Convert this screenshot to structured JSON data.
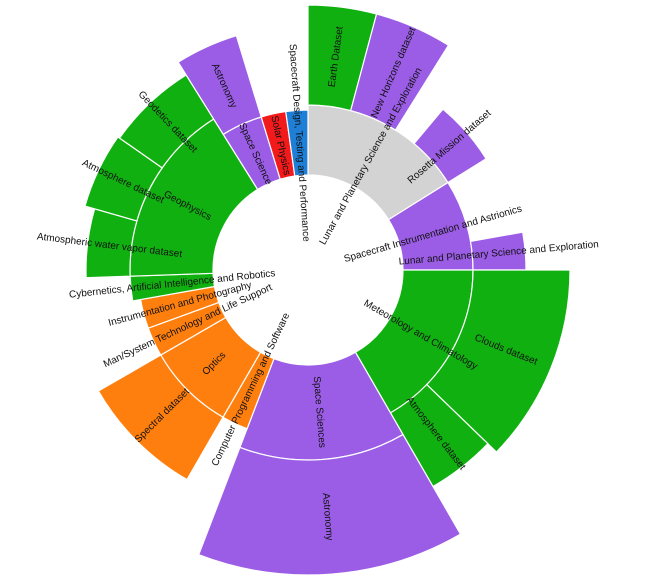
{
  "chart_data": {
    "type": "sunburst",
    "colors": {
      "gray": "#d3d3d3",
      "purple": "#9b5de5",
      "green": "#11b011",
      "orange": "#ff7f0e",
      "red": "#f21a1a",
      "blue": "#1f7fd6"
    },
    "segments": [
      {
        "id": "lunar",
        "ring": 1,
        "start": 0,
        "end": 58,
        "label": "Lunar and Planetary Science and Exploration",
        "color": "gray",
        "outer": "med"
      },
      {
        "id": "earth",
        "ring": 2,
        "start": 0,
        "end": 15,
        "label": "Earth Dataset",
        "color": "green",
        "outer": "tall"
      },
      {
        "id": "newhorizons",
        "ring": 2,
        "start": 15,
        "end": 32,
        "label": "New Horizons dataset",
        "color": "purple",
        "outer": "tall"
      },
      {
        "id": "rosetta",
        "ring": 2,
        "start": 40,
        "end": 58,
        "label": "Rosetta Mission dataset",
        "color": "purple",
        "outer": "med"
      },
      {
        "id": "instr",
        "ring": 1,
        "start": 58,
        "end": 90,
        "label": "Spacecraft Instrumentation and Astrionics",
        "color": "purple",
        "outer": "short"
      },
      {
        "id": "lunar2",
        "ring": 2,
        "start": 80,
        "end": 90,
        "label": "Lunar and Planetary Science and Exploration",
        "color": "purple",
        "outer": "short"
      },
      {
        "id": "meteo",
        "ring": 1,
        "start": 90,
        "end": 150,
        "label": "Meteorology and Climatology",
        "color": "green",
        "outer": "med"
      },
      {
        "id": "clouds",
        "ring": 2,
        "start": 90,
        "end": 134,
        "label": "Clouds dataset",
        "color": "green",
        "outer": "med"
      },
      {
        "id": "atmos1",
        "ring": 2,
        "start": 134,
        "end": 150,
        "label": "Atmosphere dataset",
        "color": "green",
        "outer": "med"
      },
      {
        "id": "spacesci",
        "ring": 1,
        "start": 150,
        "end": 201,
        "label": "Space Sciences",
        "color": "purple",
        "outer": "tall"
      },
      {
        "id": "astronomy1",
        "ring": 2,
        "start": 150,
        "end": 201,
        "label": "Astronomy",
        "color": "purple",
        "outer": "tall"
      },
      {
        "id": "compprog",
        "ring": 1,
        "start": 201,
        "end": 210,
        "label": "Computer Programming and Software",
        "color": "orange",
        "outer": "short"
      },
      {
        "id": "optics",
        "ring": 1,
        "start": 210,
        "end": 240,
        "label": "Optics",
        "color": "orange",
        "outer": "tall"
      },
      {
        "id": "spectral",
        "ring": 2,
        "start": 210,
        "end": 240,
        "label": "Spectral dataset",
        "color": "orange",
        "outer": "tall"
      },
      {
        "id": "mansys",
        "ring": 1,
        "start": 240,
        "end": 250,
        "label": "Man/System Technology and Life Support",
        "color": "orange",
        "outer": "short"
      },
      {
        "id": "instphoto",
        "ring": 1,
        "start": 250,
        "end": 260,
        "label": "Instrumentation and Photography",
        "color": "orange",
        "outer": "short"
      },
      {
        "id": "cyber",
        "ring": 1,
        "start": 260,
        "end": 268,
        "label": "Cybernetics, Artificial Intelligence and Robotics",
        "color": "green",
        "outer": "short"
      },
      {
        "id": "geophysics",
        "ring": 1,
        "start": 268,
        "end": 328,
        "label": "Geophysics",
        "color": "green",
        "outer": "short"
      },
      {
        "id": "atmwater",
        "ring": 2,
        "start": 268,
        "end": 286,
        "label": "Atmospheric water vapor dataset",
        "color": "green",
        "outer": "med"
      },
      {
        "id": "atmos2",
        "ring": 2,
        "start": 286,
        "end": 305,
        "label": "Atmosphere dataset",
        "color": "green",
        "outer": "med"
      },
      {
        "id": "geodetics",
        "ring": 2,
        "start": 305,
        "end": 328,
        "label": "Geodetics dataset",
        "color": "green",
        "outer": "med"
      },
      {
        "id": "spacescience",
        "ring": 1,
        "start": 328,
        "end": 343,
        "label": "Space Science",
        "color": "purple",
        "outer": "short"
      },
      {
        "id": "astronomy2",
        "ring": 2,
        "start": 328,
        "end": 343,
        "label": "Astronomy",
        "color": "purple",
        "outer": "med"
      },
      {
        "id": "solar",
        "ring": 1,
        "start": 343,
        "end": 352,
        "label": "Solar Physics",
        "color": "red",
        "outer": "short"
      },
      {
        "id": "spacecraftdesign",
        "ring": 1,
        "start": 352,
        "end": 360,
        "label": "Spacecraft Design, Testing and Performance",
        "color": "blue",
        "outer": "short"
      }
    ]
  }
}
